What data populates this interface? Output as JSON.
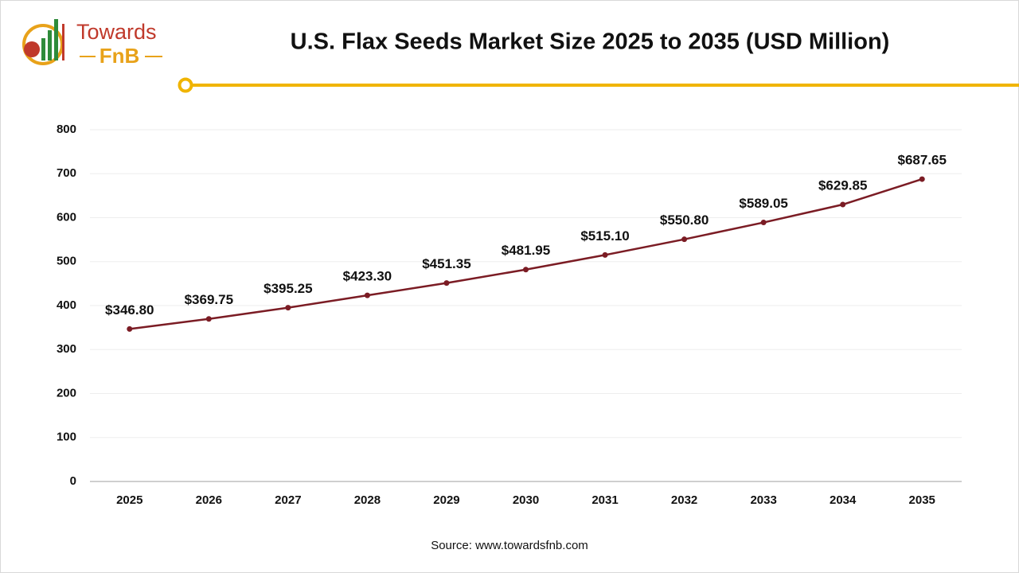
{
  "logo": {
    "line1": "Towards",
    "line2": "FnB"
  },
  "chart_data": {
    "type": "line",
    "title": "U.S. Flax Seeds Market Size 2025 to 2035 (USD Million)",
    "categories": [
      "2025",
      "2026",
      "2027",
      "2028",
      "2029",
      "2030",
      "2031",
      "2032",
      "2033",
      "2034",
      "2035"
    ],
    "values": [
      346.8,
      369.75,
      395.25,
      423.3,
      451.35,
      481.95,
      515.1,
      550.8,
      589.05,
      629.85,
      687.65
    ],
    "value_labels": [
      "$346.80",
      "$369.75",
      "$395.25",
      "$423.30",
      "$451.35",
      "$481.95",
      "$515.10",
      "$550.80",
      "$589.05",
      "$629.85",
      "$687.65"
    ],
    "color": "#7b1c24",
    "ylim": [
      0,
      800
    ],
    "yticks": [
      0,
      100,
      200,
      300,
      400,
      500,
      600,
      700,
      800
    ],
    "grid": true,
    "source": "Source: www.towardsfnb.com"
  }
}
